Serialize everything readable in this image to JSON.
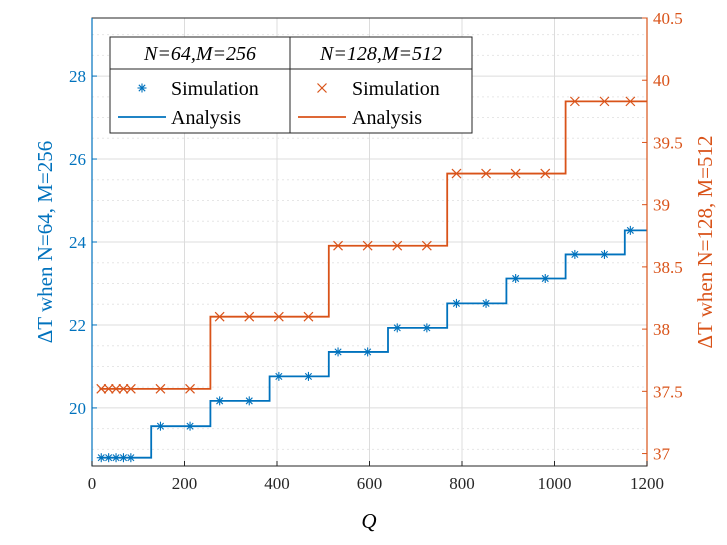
{
  "chart_data": {
    "type": "line",
    "title": "",
    "xlabel": "Q",
    "ylabel_left": "ΔT when N=64, M=256",
    "ylabel_right": "ΔT when N=128, M=512",
    "xlim": [
      0,
      1200
    ],
    "ylim_left": [
      18.6,
      29.4
    ],
    "ylim_right": [
      36.9,
      40.5
    ],
    "xticks": [
      "0",
      "200",
      "400",
      "600",
      "800",
      "1000",
      "1200"
    ],
    "yticks_left": [
      "20",
      "22",
      "24",
      "26",
      "28"
    ],
    "yticks_right": [
      "37",
      "37.5",
      "38",
      "38.5",
      "39",
      "39.5",
      "40",
      "40.5"
    ],
    "grid": true,
    "legend_placement": "top-left",
    "legend": {
      "group1_header": "N=64,M=256",
      "group2_header": "N=128,M=512",
      "sim_label": "Simulation",
      "ana_label": "Analysis"
    },
    "colors": {
      "blue": "#0072BD",
      "orange": "#D95319"
    },
    "series": [
      {
        "name": "Simulation",
        "group": "N=64,M=256",
        "axis": "left",
        "marker": "asterisk",
        "x": [
          20,
          36,
          52,
          68,
          84,
          148,
          212,
          276,
          340,
          404,
          468,
          532,
          596,
          660,
          724,
          788,
          852,
          916,
          980,
          1044,
          1108,
          1164
        ],
        "y": [
          18.8,
          18.8,
          18.8,
          18.8,
          18.8,
          19.56,
          19.56,
          20.17,
          20.17,
          20.76,
          20.76,
          21.35,
          21.35,
          21.93,
          21.93,
          22.52,
          22.52,
          23.12,
          23.12,
          23.7,
          23.7,
          24.28
        ]
      },
      {
        "name": "Analysis",
        "group": "N=64,M=256",
        "axis": "left",
        "x": [
          16,
          128,
          128,
          256,
          256,
          384,
          384,
          512,
          512,
          640,
          640,
          768,
          768,
          896,
          896,
          1024,
          1024,
          1152,
          1152,
          1200
        ],
        "y": [
          18.8,
          18.8,
          19.56,
          19.56,
          20.17,
          20.17,
          20.76,
          20.76,
          21.35,
          21.35,
          21.93,
          21.93,
          22.52,
          22.52,
          23.12,
          23.12,
          23.7,
          23.7,
          24.28,
          24.28
        ]
      },
      {
        "name": "Simulation",
        "group": "N=128,M=512",
        "axis": "right",
        "marker": "x",
        "x": [
          20,
          36,
          52,
          68,
          84,
          148,
          212,
          276,
          340,
          404,
          468,
          532,
          596,
          660,
          724,
          788,
          852,
          916,
          980,
          1044,
          1108,
          1164
        ],
        "y": [
          37.52,
          37.52,
          37.52,
          37.52,
          37.52,
          37.52,
          37.52,
          38.1,
          38.1,
          38.1,
          38.1,
          38.67,
          38.67,
          38.67,
          38.67,
          39.25,
          39.25,
          39.25,
          39.25,
          39.83,
          39.83,
          39.83
        ]
      },
      {
        "name": "Analysis",
        "group": "N=128,M=512",
        "axis": "right",
        "x": [
          16,
          256,
          256,
          512,
          512,
          768,
          768,
          1024,
          1024,
          1200
        ],
        "y": [
          37.52,
          37.52,
          38.1,
          38.1,
          38.67,
          38.67,
          39.25,
          39.25,
          39.83,
          39.83
        ]
      }
    ]
  }
}
